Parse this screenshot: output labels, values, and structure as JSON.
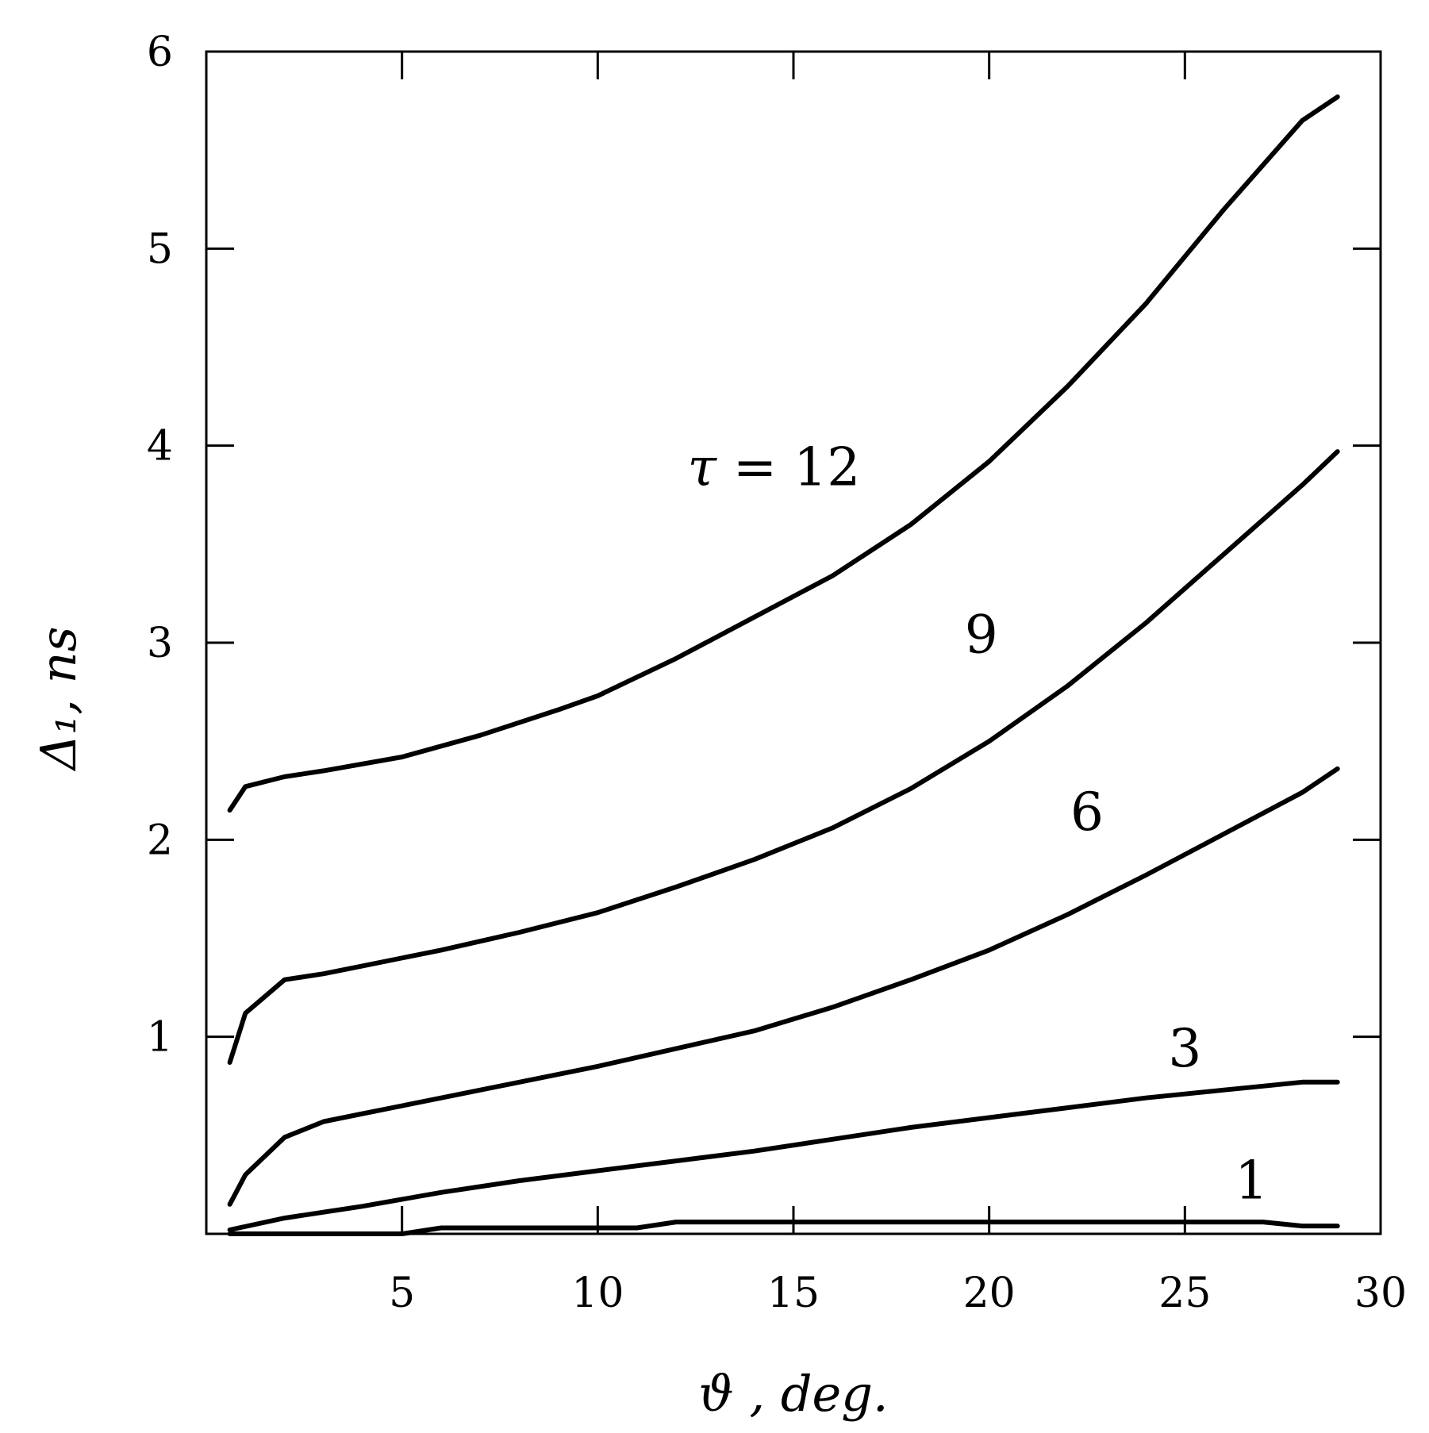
{
  "chart_data": {
    "type": "line",
    "xlabel": "ϑ , deg.",
    "ylabel": "Δ₁,  ns",
    "xlim": [
      0,
      30
    ],
    "ylim": [
      0,
      6
    ],
    "x_ticks": [
      5,
      10,
      15,
      20,
      25,
      30
    ],
    "y_ticks": [
      1,
      2,
      3,
      4,
      5,
      6
    ],
    "grid": false,
    "series": [
      {
        "name": "1",
        "x": [
          0.6,
          5,
          6,
          11,
          12,
          15,
          20,
          25,
          27,
          28,
          28.9
        ],
        "y": [
          0.0,
          0.0,
          0.03,
          0.03,
          0.06,
          0.06,
          0.06,
          0.06,
          0.06,
          0.04,
          0.04
        ]
      },
      {
        "name": "3",
        "x": [
          0.6,
          2,
          4,
          6,
          8,
          10,
          12,
          14,
          16,
          18,
          20,
          22,
          24,
          26,
          27,
          28,
          28.9
        ],
        "y": [
          0.02,
          0.08,
          0.14,
          0.21,
          0.27,
          0.32,
          0.37,
          0.42,
          0.48,
          0.54,
          0.59,
          0.64,
          0.69,
          0.73,
          0.75,
          0.77,
          0.77
        ]
      },
      {
        "name": "6",
        "x": [
          0.6,
          1,
          2,
          3,
          4,
          6,
          8,
          10,
          12,
          14,
          16,
          18,
          20,
          22,
          24,
          26,
          28,
          28.9
        ],
        "y": [
          0.15,
          0.3,
          0.49,
          0.57,
          0.61,
          0.69,
          0.77,
          0.85,
          0.94,
          1.03,
          1.15,
          1.29,
          1.44,
          1.62,
          1.82,
          2.03,
          2.24,
          2.36
        ]
      },
      {
        "name": "9",
        "x": [
          0.6,
          1,
          2,
          3,
          4,
          6,
          8,
          10,
          12,
          14,
          16,
          18,
          20,
          22,
          24,
          26,
          28,
          28.9
        ],
        "y": [
          0.87,
          1.12,
          1.29,
          1.32,
          1.36,
          1.44,
          1.53,
          1.63,
          1.76,
          1.9,
          2.06,
          2.26,
          2.5,
          2.78,
          3.1,
          3.45,
          3.8,
          3.97
        ]
      },
      {
        "name": "τ = 12",
        "x": [
          0.6,
          1,
          2,
          3,
          5,
          7,
          9,
          10,
          12,
          14,
          16,
          18,
          20,
          22,
          24,
          26,
          28,
          28.9
        ],
        "y": [
          2.15,
          2.27,
          2.32,
          2.35,
          2.42,
          2.53,
          2.66,
          2.73,
          2.92,
          3.13,
          3.34,
          3.6,
          3.92,
          4.3,
          4.72,
          5.2,
          5.65,
          5.77
        ]
      }
    ],
    "annotations": [
      {
        "text": "τ = 12",
        "x": 14.5,
        "y": 3.8
      },
      {
        "text": "9",
        "x": 19.8,
        "y": 2.95
      },
      {
        "text": "6",
        "x": 22.5,
        "y": 2.05
      },
      {
        "text": "3",
        "x": 25,
        "y": 0.85
      },
      {
        "text": "1",
        "x": 26.7,
        "y": 0.18
      }
    ]
  }
}
